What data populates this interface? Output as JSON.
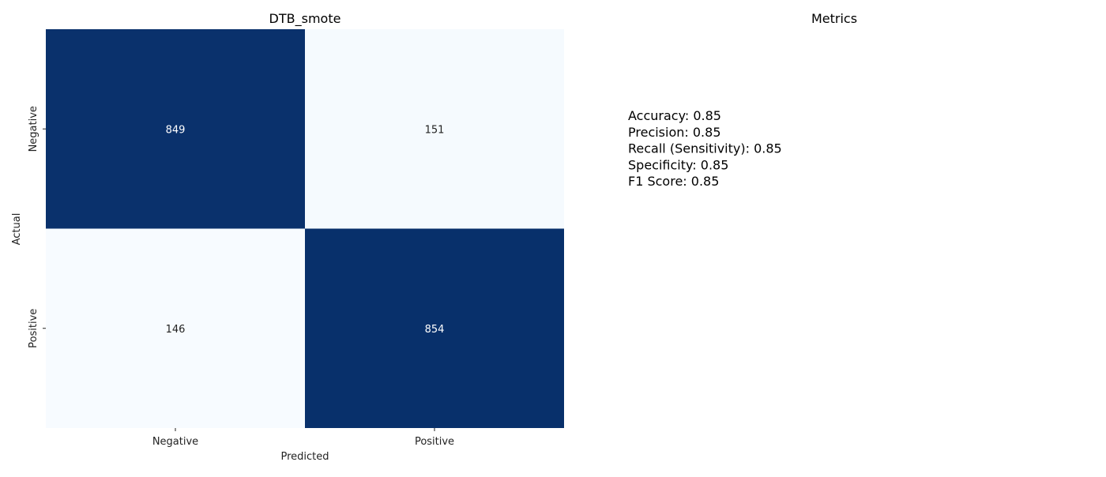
{
  "chart_data": [
    {
      "type": "heatmap",
      "title": "DTB_smote",
      "xlabel": "Predicted",
      "ylabel": "Actual",
      "x_categories": [
        "Negative",
        "Positive"
      ],
      "y_categories": [
        "Negative",
        "Positive"
      ],
      "values": [
        [
          849,
          151
        ],
        [
          146,
          854
        ]
      ],
      "colormap": "Blues",
      "colors": {
        "high": "#08306b",
        "low": "#f7fbff",
        "text_on_high": "#ffffff",
        "text_on_low": "#222222"
      },
      "grid": false,
      "legend": "none"
    },
    {
      "type": "table",
      "title": "Metrics",
      "metrics": [
        "Accuracy: 0.85",
        "Precision: 0.85",
        "Recall (Sensitivity): 0.85",
        "Specificity: 0.85",
        "F1 Score: 0.85"
      ]
    }
  ]
}
